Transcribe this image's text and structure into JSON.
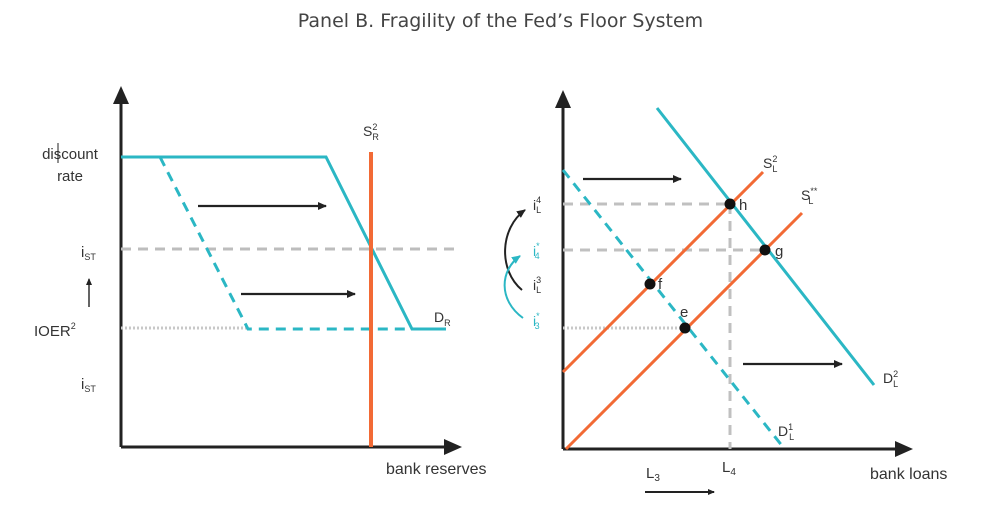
{
  "title": "Panel B. Fragility of the Fed’s Floor System",
  "colors": {
    "teal": "#2bb7c4",
    "orange": "#f26a35",
    "gray": "#c8c8c8",
    "axis": "#222222",
    "text": "#333333"
  },
  "left_panel": {
    "x_axis_label": "bank reserves",
    "y_labels": {
      "discount_rate_line1": "discount",
      "discount_rate_line2": "rate",
      "i_st_upper": "i",
      "i_st_upper_sub": "ST",
      "ioer": "IOER",
      "ioer_sup": "2",
      "i_st_lower": "i",
      "i_st_lower_sub": "ST"
    },
    "curve_labels": {
      "supply": "S",
      "supply_sup": "2",
      "supply_sub": "R",
      "demand": "D",
      "demand_sub": "R"
    }
  },
  "right_panel": {
    "x_axis_label": "bank loans",
    "x_ticks": {
      "L3": "L",
      "L3_sub": "3",
      "L4": "L",
      "L4_sub": "4"
    },
    "y_labels": {
      "iL4": "i",
      "iL4_sup": "4",
      "iL4_sub": "L",
      "i4_star": "i",
      "i4_star_sup": "*",
      "i4_star_sub": "4",
      "iL3": "i",
      "iL3_sup": "3",
      "iL3_sub": "L",
      "i3_star": "i",
      "i3_star_sup": "*",
      "i3_star_sub": "3"
    },
    "curve_labels": {
      "S2": "S",
      "S2_sup": "2",
      "S2_sub": "L",
      "Sstar": "S",
      "Sstar_sup": "**",
      "Sstar_sub": "L",
      "D2": "D",
      "D2_sup": "2",
      "D2_sub": "L",
      "D1": "D",
      "D1_sup": "1",
      "D1_sub": "L"
    },
    "points": {
      "e": "e",
      "f": "f",
      "g": "g",
      "h": "h"
    }
  }
}
